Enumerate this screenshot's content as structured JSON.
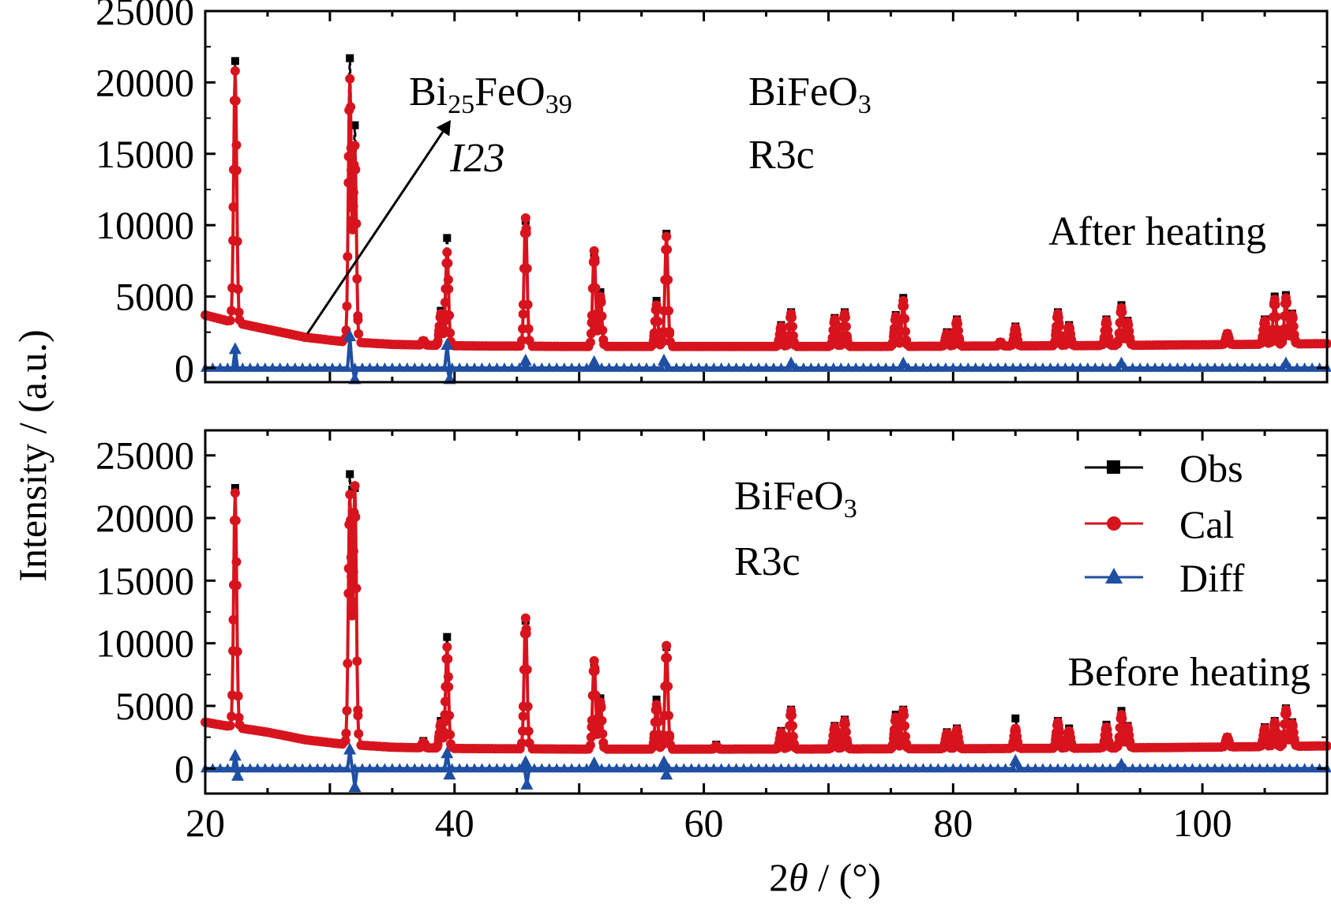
{
  "chart_data": {
    "type": "line",
    "xlabel_prefix": "2",
    "xlabel_theta": "θ",
    "xlabel_suffix": " / (°)",
    "ylabel": "Intensity / (a.u.)",
    "xlim": [
      20,
      110
    ],
    "x_ticks": [
      20,
      40,
      60,
      80,
      100
    ],
    "ylim_top": [
      -1000,
      25000
    ],
    "ylim_bottom": [
      -2000,
      27000
    ],
    "y_ticks": [
      0,
      5000,
      10000,
      15000,
      20000,
      25000
    ],
    "series_colors": {
      "obs": "#000000",
      "cal": "#d7141e",
      "diff": "#1f4fa3"
    },
    "legend": {
      "position": "top-right of lower panel",
      "entries": [
        "Obs",
        "Cal",
        "Diff"
      ]
    },
    "panels": [
      {
        "id": "after",
        "label": "After heating",
        "phases": [
          {
            "formula_main": "BiFeO",
            "formula_sub": "3",
            "space_group": "R3c"
          }
        ],
        "impurity": {
          "main1": "Bi",
          "sub1": "25",
          "main2": "FeO",
          "sub2": "39",
          "space_group": "I23"
        },
        "arrow_x": 28.2,
        "background": [
          [
            20,
            3700
          ],
          [
            22,
            3250
          ],
          [
            25,
            2700
          ],
          [
            28,
            2150
          ],
          [
            31,
            1850
          ],
          [
            35,
            1650
          ],
          [
            40,
            1550
          ],
          [
            50,
            1500
          ],
          [
            60,
            1500
          ],
          [
            70,
            1500
          ],
          [
            80,
            1520
          ],
          [
            90,
            1560
          ],
          [
            100,
            1620
          ],
          [
            110,
            1700
          ]
        ],
        "peaks": [
          {
            "x": 22.4,
            "obs": 21500,
            "cal": 20800
          },
          {
            "x": 31.6,
            "obs": 21700,
            "cal": 20200
          },
          {
            "x": 32.0,
            "obs": 17000,
            "cal": 15500
          },
          {
            "x": 37.5,
            "obs": 1900,
            "cal": 1900
          },
          {
            "x": 38.9,
            "obs": 4000,
            "cal": 3800
          },
          {
            "x": 39.4,
            "obs": 9100,
            "cal": 8100
          },
          {
            "x": 45.7,
            "obs": 10300,
            "cal": 10500
          },
          {
            "x": 51.2,
            "obs": 8000,
            "cal": 8200
          },
          {
            "x": 51.7,
            "obs": 5300,
            "cal": 5000
          },
          {
            "x": 56.2,
            "obs": 4700,
            "cal": 4400
          },
          {
            "x": 57.0,
            "obs": 9400,
            "cal": 9200
          },
          {
            "x": 66.2,
            "obs": 3000,
            "cal": 2900
          },
          {
            "x": 67.0,
            "obs": 3900,
            "cal": 3800
          },
          {
            "x": 70.5,
            "obs": 3500,
            "cal": 3400
          },
          {
            "x": 71.3,
            "obs": 3900,
            "cal": 3800
          },
          {
            "x": 75.4,
            "obs": 3700,
            "cal": 3600
          },
          {
            "x": 76.0,
            "obs": 4900,
            "cal": 4700
          },
          {
            "x": 79.5,
            "obs": 2500,
            "cal": 2400
          },
          {
            "x": 80.3,
            "obs": 3400,
            "cal": 3300
          },
          {
            "x": 83.8,
            "obs": 1800,
            "cal": 1800
          },
          {
            "x": 85.0,
            "obs": 2900,
            "cal": 2800
          },
          {
            "x": 88.4,
            "obs": 3900,
            "cal": 3800
          },
          {
            "x": 89.3,
            "obs": 3000,
            "cal": 2900
          },
          {
            "x": 92.3,
            "obs": 3400,
            "cal": 3300
          },
          {
            "x": 93.5,
            "obs": 4400,
            "cal": 4200
          },
          {
            "x": 94.0,
            "obs": 3300,
            "cal": 3200
          },
          {
            "x": 102.0,
            "obs": 2400,
            "cal": 2400
          },
          {
            "x": 105.0,
            "obs": 3400,
            "cal": 3300
          },
          {
            "x": 105.8,
            "obs": 5000,
            "cal": 4800
          },
          {
            "x": 106.7,
            "obs": 5100,
            "cal": 4900
          },
          {
            "x": 107.2,
            "obs": 3800,
            "cal": 3700
          }
        ],
        "diff_spikes": [
          {
            "x": 22.4,
            "value": 1300
          },
          {
            "x": 31.6,
            "value": 2200
          },
          {
            "x": 32.0,
            "value": -800
          },
          {
            "x": 39.4,
            "value": 1600
          },
          {
            "x": 39.6,
            "value": -800
          },
          {
            "x": 45.7,
            "value": 500
          },
          {
            "x": 51.2,
            "value": 400
          },
          {
            "x": 56.8,
            "value": 500
          },
          {
            "x": 67.0,
            "value": 300
          },
          {
            "x": 76.0,
            "value": 300
          },
          {
            "x": 93.5,
            "value": 300
          },
          {
            "x": 106.7,
            "value": 300
          }
        ]
      },
      {
        "id": "before",
        "label": "Before heating",
        "phases": [
          {
            "formula_main": "BiFeO",
            "formula_sub": "3",
            "space_group": "R3c"
          }
        ],
        "background": [
          [
            20,
            3700
          ],
          [
            22,
            3350
          ],
          [
            25,
            2900
          ],
          [
            28,
            2300
          ],
          [
            31,
            1950
          ],
          [
            35,
            1700
          ],
          [
            40,
            1600
          ],
          [
            50,
            1550
          ],
          [
            60,
            1550
          ],
          [
            70,
            1560
          ],
          [
            80,
            1580
          ],
          [
            90,
            1620
          ],
          [
            100,
            1700
          ],
          [
            110,
            1800
          ]
        ],
        "peaks": [
          {
            "x": 22.4,
            "obs": 22400,
            "cal": 22000
          },
          {
            "x": 31.6,
            "obs": 23500,
            "cal": 21800
          },
          {
            "x": 32.0,
            "obs": 22400,
            "cal": 22500
          },
          {
            "x": 37.5,
            "obs": 2200,
            "cal": 2100
          },
          {
            "x": 38.9,
            "obs": 3800,
            "cal": 3600
          },
          {
            "x": 39.4,
            "obs": 10500,
            "cal": 9700
          },
          {
            "x": 45.7,
            "obs": 11800,
            "cal": 12000
          },
          {
            "x": 51.2,
            "obs": 8400,
            "cal": 8600
          },
          {
            "x": 51.7,
            "obs": 5600,
            "cal": 5300
          },
          {
            "x": 56.2,
            "obs": 5500,
            "cal": 5100
          },
          {
            "x": 57.0,
            "obs": 9700,
            "cal": 9800
          },
          {
            "x": 61.0,
            "obs": 1900,
            "cal": 1800
          },
          {
            "x": 66.2,
            "obs": 3000,
            "cal": 2900
          },
          {
            "x": 67.0,
            "obs": 4700,
            "cal": 4600
          },
          {
            "x": 70.5,
            "obs": 3400,
            "cal": 3300
          },
          {
            "x": 71.3,
            "obs": 3900,
            "cal": 3800
          },
          {
            "x": 75.4,
            "obs": 4300,
            "cal": 4100
          },
          {
            "x": 76.0,
            "obs": 4700,
            "cal": 4600
          },
          {
            "x": 79.5,
            "obs": 2900,
            "cal": 2800
          },
          {
            "x": 80.3,
            "obs": 3200,
            "cal": 3100
          },
          {
            "x": 85.0,
            "obs": 4000,
            "cal": 3200
          },
          {
            "x": 88.4,
            "obs": 3800,
            "cal": 3700
          },
          {
            "x": 89.3,
            "obs": 3200,
            "cal": 3000
          },
          {
            "x": 92.3,
            "obs": 3500,
            "cal": 3300
          },
          {
            "x": 93.5,
            "obs": 4600,
            "cal": 4300
          },
          {
            "x": 94.0,
            "obs": 3400,
            "cal": 3300
          },
          {
            "x": 102.0,
            "obs": 2500,
            "cal": 2500
          },
          {
            "x": 105.0,
            "obs": 3300,
            "cal": 3200
          },
          {
            "x": 105.8,
            "obs": 3800,
            "cal": 3700
          },
          {
            "x": 106.7,
            "obs": 4800,
            "cal": 4700
          },
          {
            "x": 107.2,
            "obs": 3700,
            "cal": 3600
          }
        ],
        "diff_spikes": [
          {
            "x": 22.4,
            "value": 1000
          },
          {
            "x": 22.6,
            "value": -600
          },
          {
            "x": 31.6,
            "value": 1500
          },
          {
            "x": 32.0,
            "value": -1500
          },
          {
            "x": 39.4,
            "value": 1200
          },
          {
            "x": 39.6,
            "value": -500
          },
          {
            "x": 45.7,
            "value": 500
          },
          {
            "x": 45.8,
            "value": -1300
          },
          {
            "x": 51.2,
            "value": 400
          },
          {
            "x": 56.8,
            "value": 500
          },
          {
            "x": 57.0,
            "value": -500
          },
          {
            "x": 85.0,
            "value": 600
          },
          {
            "x": 93.5,
            "value": 300
          }
        ]
      }
    ]
  }
}
